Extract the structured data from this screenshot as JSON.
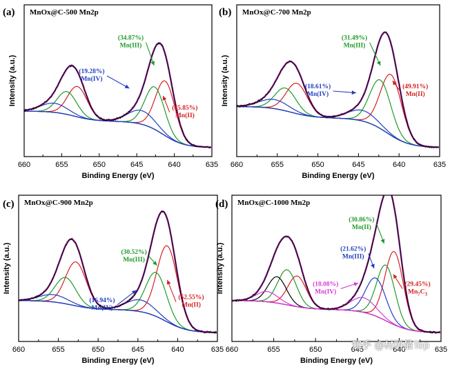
{
  "watermark": "知乎 @材料最Top",
  "colors": {
    "envelope": "#000000",
    "fit_outline": "#800080",
    "background": "#1f3fbf",
    "mn2": "#d42020",
    "mn3": "#1e9a28",
    "mn4": "#1f3fbf",
    "mnc": "#d42020",
    "magenta_bg": "#d63ad6"
  },
  "chart_data": [
    {
      "type": "line",
      "panel_label": "(a)",
      "title": "MnOx@C-500  Mn2p",
      "xlabel": "Binding Energy (eV)",
      "ylabel": "Intensity (a.u.)",
      "xlim": [
        660,
        635
      ],
      "x_ticks": [
        660,
        655,
        650,
        645,
        640,
        635
      ],
      "y_ticks": "none",
      "background": {
        "baseline": 0.3,
        "end": 0.06
      },
      "components": [
        {
          "center": 641.2,
          "height": 0.36,
          "width": 1.3,
          "color": "#d42020"
        },
        {
          "center": 642.6,
          "height": 0.28,
          "width": 1.3,
          "color": "#1e9a28"
        },
        {
          "center": 644.4,
          "height": 0.09,
          "width": 1.8,
          "color": "#1f3fbf"
        },
        {
          "center": 652.9,
          "height": 0.2,
          "width": 1.3,
          "color": "#d42020"
        },
        {
          "center": 654.3,
          "height": 0.15,
          "width": 1.3,
          "color": "#1e9a28"
        },
        {
          "center": 656.0,
          "height": 0.06,
          "width": 1.8,
          "color": "#1f3fbf"
        }
      ],
      "annotations": [
        {
          "lines": [
            "(34.87%)",
            "Mn(III)"
          ],
          "color": "#1e9a28",
          "x": 645.8,
          "y": 0.77,
          "arrow_to": [
            642.7,
            0.6
          ]
        },
        {
          "lines": [
            "(19.28%)",
            "Mn(IV)"
          ],
          "color": "#1f3fbf",
          "x": 651.0,
          "y": 0.55,
          "arrow_to": [
            646.0,
            0.45
          ]
        },
        {
          "lines": [
            "(45.85%)",
            "Mn(II)"
          ],
          "color": "#d42020",
          "x": 638.6,
          "y": 0.31,
          "arrow_to": [
            641.5,
            0.4
          ]
        }
      ]
    },
    {
      "type": "line",
      "panel_label": "(b)",
      "title": "MnOx@C-700  Mn2p",
      "xlabel": "Binding Energy (eV)",
      "ylabel": "Intensity (a.u.)",
      "xlim": [
        660,
        635
      ],
      "x_ticks": [
        660,
        655,
        650,
        645,
        640,
        635
      ],
      "y_ticks": "none",
      "background": {
        "baseline": 0.33,
        "end": 0.06
      },
      "components": [
        {
          "center": 641.0,
          "height": 0.4,
          "width": 1.3,
          "color": "#d42020"
        },
        {
          "center": 642.3,
          "height": 0.32,
          "width": 1.3,
          "color": "#1e9a28"
        },
        {
          "center": 644.5,
          "height": 0.07,
          "width": 1.8,
          "color": "#1f3fbf"
        },
        {
          "center": 652.6,
          "height": 0.2,
          "width": 1.3,
          "color": "#d42020"
        },
        {
          "center": 654.0,
          "height": 0.15,
          "width": 1.3,
          "color": "#1e9a28"
        },
        {
          "center": 655.4,
          "height": 0.06,
          "width": 1.8,
          "color": "#1f3fbf"
        }
      ],
      "annotations": [
        {
          "lines": [
            "(31.49%)",
            "Mn(III)"
          ],
          "color": "#1e9a28",
          "x": 645.5,
          "y": 0.77,
          "arrow_to": [
            642.3,
            0.6
          ]
        },
        {
          "lines": [
            "(18.61%)",
            "Mn(IV)"
          ],
          "color": "#1f3fbf",
          "x": 650.0,
          "y": 0.45,
          "arrow_to": [
            645.3,
            0.42
          ]
        },
        {
          "lines": [
            "(49.91%)",
            "Mn(II)"
          ],
          "color": "#d42020",
          "x": 638.0,
          "y": 0.45,
          "arrow_to": [
            640.8,
            0.5
          ]
        }
      ]
    },
    {
      "type": "line",
      "panel_label": "(c)",
      "title": "MnOx@C-900  Mn2p",
      "xlabel": "Binding Energy (eV)",
      "ylabel": "Intensity (a.u.)",
      "xlim": [
        660,
        635
      ],
      "x_ticks": [
        660,
        655,
        650,
        645,
        640,
        635
      ],
      "y_ticks": "none",
      "background": {
        "baseline": 0.28,
        "end": 0.06
      },
      "components": [
        {
          "center": 641.3,
          "height": 0.52,
          "width": 1.3,
          "color": "#d42020"
        },
        {
          "center": 642.7,
          "height": 0.3,
          "width": 1.3,
          "color": "#1e9a28"
        },
        {
          "center": 644.7,
          "height": 0.08,
          "width": 1.8,
          "color": "#1f3fbf"
        },
        {
          "center": 652.8,
          "height": 0.3,
          "width": 1.3,
          "color": "#d42020"
        },
        {
          "center": 654.1,
          "height": 0.18,
          "width": 1.3,
          "color": "#1e9a28"
        },
        {
          "center": 655.6,
          "height": 0.05,
          "width": 1.8,
          "color": "#1f3fbf"
        }
      ],
      "annotations": [
        {
          "lines": [
            "(30.52%)",
            "Mn(III)"
          ],
          "color": "#1e9a28",
          "x": 645.5,
          "y": 0.6,
          "arrow_to": [
            642.6,
            0.52
          ]
        },
        {
          "lines": [
            "(16.94%)",
            "Mn(IV)"
          ],
          "color": "#1f3fbf",
          "x": 649.5,
          "y": 0.27,
          "arrow_to": [
            645.2,
            0.35
          ]
        },
        {
          "lines": [
            "(52.55%)",
            "Mn(II)"
          ],
          "color": "#d42020",
          "x": 638.3,
          "y": 0.29,
          "arrow_to": [
            641.3,
            0.42
          ]
        }
      ]
    },
    {
      "type": "line",
      "panel_label": "(d)",
      "title": "MnOx@C-1000  Mn2p",
      "xlabel": "Binding Energy (eV)",
      "ylabel": "Intensity (a.u.)",
      "xlim": [
        660,
        635
      ],
      "x_ticks": [
        660,
        655,
        650,
        645,
        640,
        635
      ],
      "y_ticks": "none",
      "background": {
        "baseline": 0.28,
        "end": 0.06,
        "color": "#d63ad6"
      },
      "components": [
        {
          "center": 640.6,
          "height": 0.5,
          "width": 1.1,
          "color": "#d42020"
        },
        {
          "center": 641.6,
          "height": 0.38,
          "width": 1.1,
          "color": "#1e9a28"
        },
        {
          "center": 642.8,
          "height": 0.26,
          "width": 1.2,
          "color": "#1f3fbf"
        },
        {
          "center": 644.3,
          "height": 0.1,
          "width": 1.5,
          "color": "#d63ad6"
        },
        {
          "center": 652.2,
          "height": 0.21,
          "width": 1.1,
          "color": "#d42020"
        },
        {
          "center": 653.4,
          "height": 0.24,
          "width": 1.1,
          "color": "#1e9a28"
        },
        {
          "center": 654.6,
          "height": 0.18,
          "width": 1.1,
          "color": "#000000"
        },
        {
          "center": 655.8,
          "height": 0.07,
          "width": 1.3,
          "color": "#d63ad6"
        }
      ],
      "annotations": [
        {
          "lines": [
            "(30.86%)",
            "Mn(II)"
          ],
          "color": "#1e9a28",
          "x": 644.5,
          "y": 0.82,
          "arrow_to": [
            641.8,
            0.67
          ]
        },
        {
          "lines": [
            "(21.62%)",
            "Mn(III)"
          ],
          "color": "#1f3fbf",
          "x": 645.5,
          "y": 0.62,
          "arrow_to": [
            643.0,
            0.5
          ]
        },
        {
          "lines": [
            "(18.08%)",
            "Mn(IV)"
          ],
          "color": "#d63ad6",
          "x": 648.8,
          "y": 0.38,
          "arrow_to": [
            644.9,
            0.4
          ]
        },
        {
          "lines": [
            "(29.45%)",
            "Mn",
            "7",
            "C",
            "3"
          ],
          "color": "#d42020",
          "x": 637.8,
          "y": 0.38,
          "arrow_to": [
            640.7,
            0.46
          ],
          "subscript_label": true
        }
      ]
    }
  ]
}
